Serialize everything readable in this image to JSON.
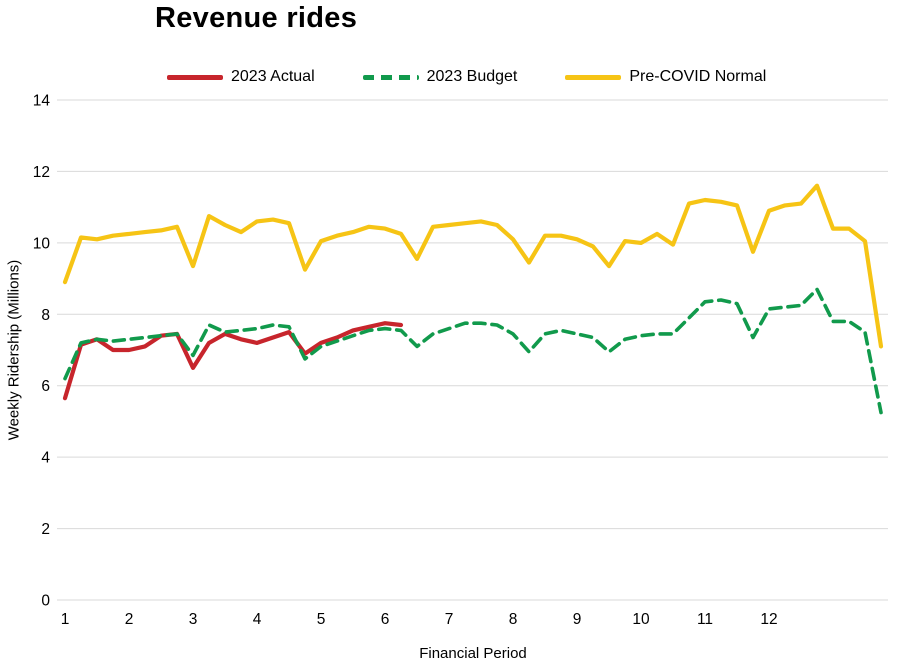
{
  "chart_data": {
    "type": "line",
    "title": "Revenue rides",
    "xlabel": "Financial Period",
    "ylabel": "Weekly Ridership (Millions)",
    "ylim": [
      0,
      14
    ],
    "y_ticks": [
      0,
      2,
      4,
      6,
      8,
      10,
      12,
      14
    ],
    "x_tick_labels": [
      "1",
      "2",
      "3",
      "4",
      "5",
      "6",
      "7",
      "8",
      "9",
      "10",
      "11",
      "12"
    ],
    "x_tick_weeks": [
      1,
      5,
      9,
      13,
      17,
      21,
      25,
      29,
      33,
      37,
      41,
      45
    ],
    "weeks": 52,
    "grid": "horizontal-only",
    "grid_color": "#d9d9d9",
    "legend_position": "top",
    "series": [
      {
        "name": "2023 Actual",
        "color": "#c7252c",
        "style": "solid",
        "values": [
          5.65,
          7.15,
          7.3,
          7.0,
          7.0,
          7.1,
          7.4,
          7.45,
          6.5,
          7.2,
          7.45,
          7.3,
          7.2,
          7.35,
          7.5,
          6.9,
          7.2,
          7.35,
          7.55,
          7.65,
          7.75,
          7.7
        ]
      },
      {
        "name": "2023 Budget",
        "color": "#119a4c",
        "style": "dashed",
        "values": [
          6.2,
          7.2,
          7.3,
          7.25,
          7.3,
          7.35,
          7.4,
          7.45,
          6.85,
          7.7,
          7.5,
          7.55,
          7.6,
          7.7,
          7.65,
          6.75,
          7.1,
          7.25,
          7.4,
          7.55,
          7.6,
          7.55,
          7.1,
          7.45,
          7.6,
          7.75,
          7.75,
          7.7,
          7.45,
          6.95,
          7.45,
          7.55,
          7.45,
          7.35,
          6.95,
          7.3,
          7.4,
          7.45,
          7.45,
          7.9,
          8.35,
          8.4,
          8.3,
          7.35,
          8.15,
          8.2,
          8.25,
          8.7,
          7.8,
          7.8,
          7.5,
          5.25
        ]
      },
      {
        "name": "Pre-COVID Normal",
        "color": "#f6c415",
        "style": "solid",
        "values": [
          8.9,
          10.15,
          10.1,
          10.2,
          10.25,
          10.3,
          10.35,
          10.45,
          9.35,
          10.75,
          10.5,
          10.3,
          10.6,
          10.65,
          10.55,
          9.25,
          10.05,
          10.2,
          10.3,
          10.45,
          10.4,
          10.25,
          9.55,
          10.45,
          10.5,
          10.55,
          10.6,
          10.5,
          10.1,
          9.45,
          10.2,
          10.2,
          10.1,
          9.9,
          9.35,
          10.05,
          10.0,
          10.25,
          9.95,
          11.1,
          11.2,
          11.15,
          11.05,
          9.75,
          10.9,
          11.05,
          11.1,
          11.6,
          10.4,
          10.4,
          10.05,
          7.1
        ]
      }
    ]
  }
}
